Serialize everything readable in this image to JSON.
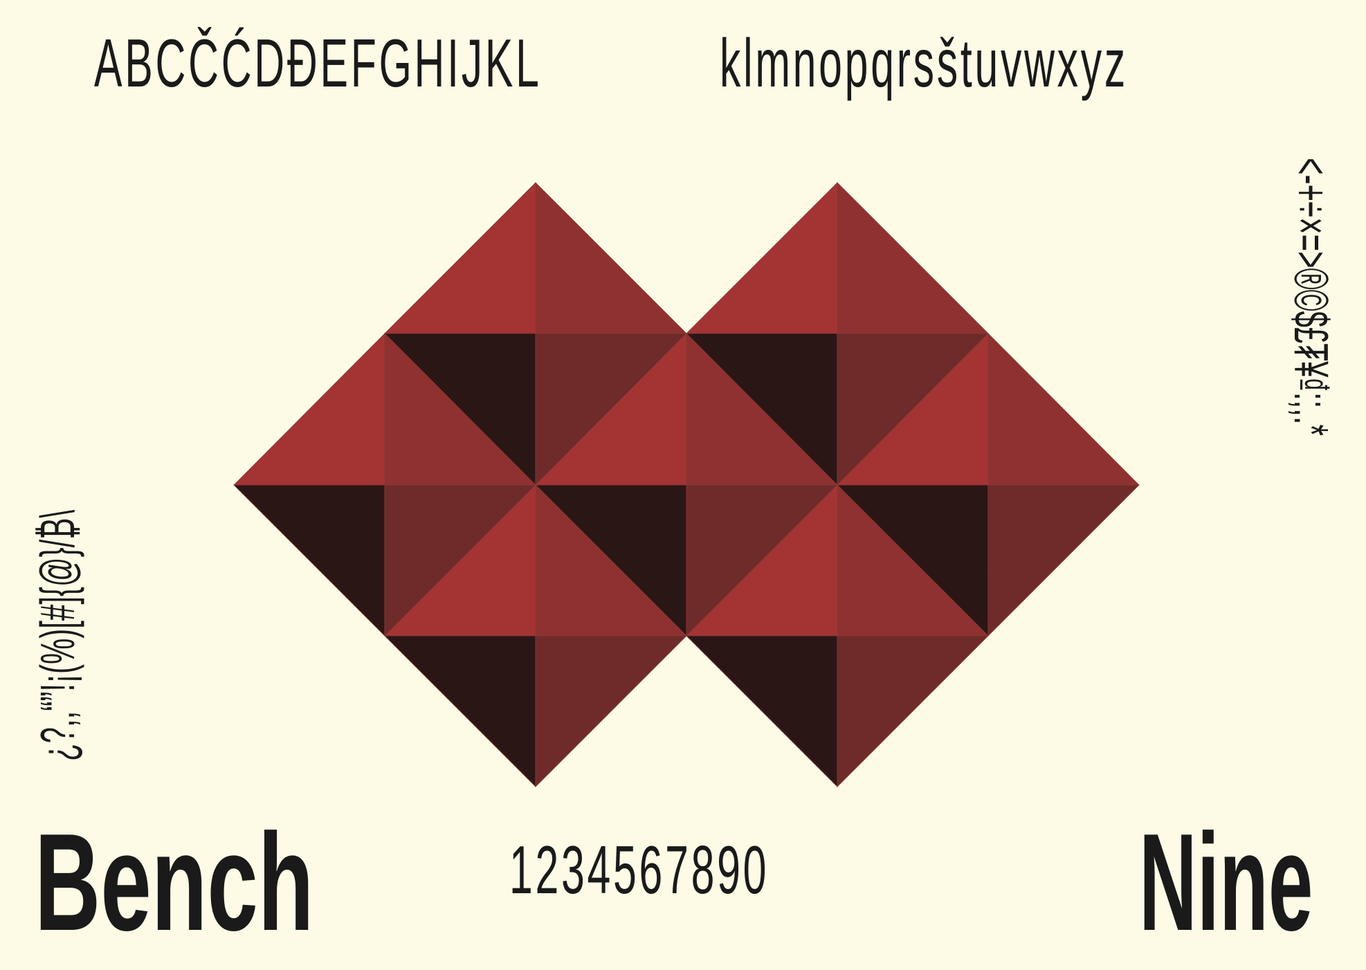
{
  "uppercase_row": "ABCČĆDĐEFGHIJKL",
  "lowercase_row": "klmnopqrsštuvwxyz",
  "digits_row": "1234567890",
  "word_left": "Bench",
  "word_right": "Nine",
  "side_left": "¿?,,“”!¡(%)[#]{@}/₿\\",
  "side_right": "<-+÷×=>®©$£₮¥₫:;,.*",
  "colors": {
    "background": "#fdfbe6",
    "text": "#1a1a1a",
    "red": "#a43333",
    "mid_red": "#8e3130",
    "dark_red": "#6f2b29",
    "near_black": "#2b1616"
  }
}
